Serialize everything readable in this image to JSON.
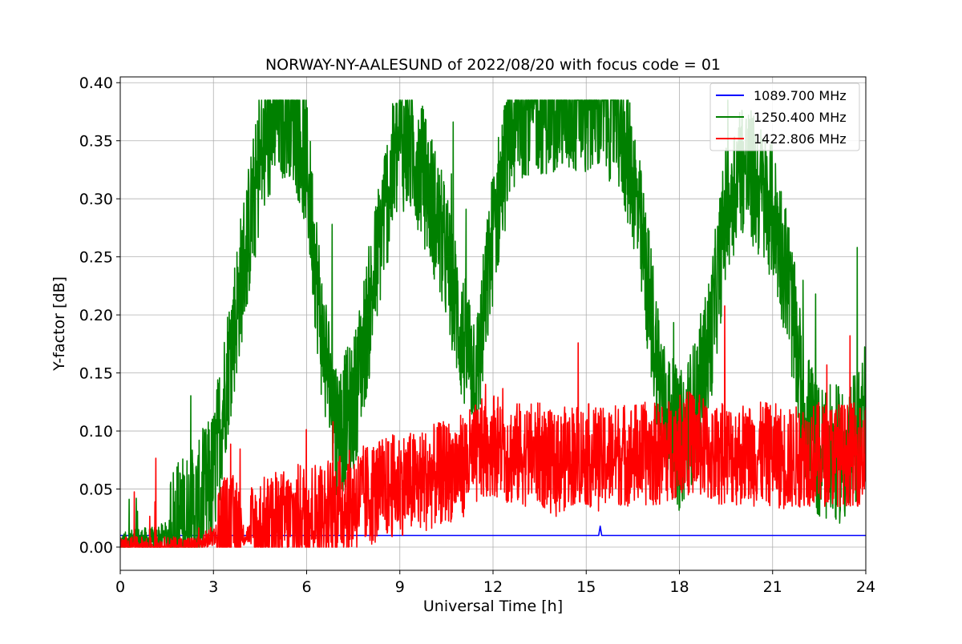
{
  "chart_data": {
    "type": "line",
    "title": "NORWAY-NY-AALESUND of 2022/08/20 with focus code = 01",
    "xlabel": "Universal Time [h]",
    "ylabel": "Y-factor [dB]",
    "xlim": [
      0,
      24
    ],
    "ylim": [
      -0.02,
      0.405
    ],
    "xticks": [
      0,
      3,
      6,
      9,
      12,
      15,
      18,
      21,
      24
    ],
    "xtick_labels": [
      "0",
      "3",
      "6",
      "9",
      "12",
      "15",
      "18",
      "21",
      "24"
    ],
    "yticks": [
      0.0,
      0.05,
      0.1,
      0.15,
      0.2,
      0.25,
      0.3,
      0.35,
      0.4
    ],
    "ytick_labels": [
      "0.00",
      "0.05",
      "0.10",
      "0.15",
      "0.20",
      "0.25",
      "0.30",
      "0.35",
      "0.40"
    ],
    "grid": true,
    "legend_position": "top-right",
    "series": [
      {
        "name": "1089.700 MHz",
        "color": "#0000ff",
        "x": [
          0,
          15.4,
          15.45,
          15.5,
          24
        ],
        "y": [
          0.01,
          0.01,
          0.018,
          0.01,
          0.01
        ]
      },
      {
        "name": "1250.400 MHz",
        "color": "#008000",
        "x": [
          0,
          0.5,
          1.0,
          1.5,
          2.0,
          2.5,
          3.0,
          3.5,
          4.0,
          4.5,
          5.0,
          5.5,
          6.0,
          6.5,
          7.0,
          7.5,
          8.0,
          8.5,
          9.0,
          9.5,
          10.0,
          10.5,
          11.0,
          11.5,
          12.0,
          12.5,
          13.0,
          13.5,
          14.0,
          14.5,
          15.0,
          15.5,
          16.0,
          16.5,
          17.0,
          17.5,
          18.0,
          18.5,
          19.0,
          19.5,
          20.0,
          20.5,
          21.0,
          21.5,
          22.0,
          22.5,
          23.0,
          23.5,
          24.0
        ],
        "y": [
          0.0,
          0.005,
          0.005,
          0.01,
          0.02,
          0.03,
          0.06,
          0.16,
          0.25,
          0.33,
          0.37,
          0.38,
          0.33,
          0.18,
          0.1,
          0.12,
          0.2,
          0.29,
          0.35,
          0.34,
          0.3,
          0.25,
          0.18,
          0.15,
          0.27,
          0.35,
          0.38,
          0.38,
          0.38,
          0.38,
          0.38,
          0.38,
          0.37,
          0.32,
          0.22,
          0.12,
          0.09,
          0.12,
          0.18,
          0.29,
          0.33,
          0.31,
          0.29,
          0.23,
          0.12,
          0.08,
          0.08,
          0.08,
          0.12
        ],
        "noise": 0.06
      },
      {
        "name": "1422.806 MHz",
        "color": "#ff0000",
        "x": [
          0,
          0.5,
          1.0,
          1.5,
          2.0,
          2.5,
          3.0,
          3.5,
          4.0,
          4.5,
          5.0,
          5.5,
          6.0,
          6.5,
          7.0,
          7.5,
          8.0,
          8.5,
          9.0,
          9.5,
          10.0,
          10.5,
          11.0,
          11.5,
          12.0,
          12.5,
          13.0,
          13.5,
          14.0,
          14.5,
          15.0,
          15.5,
          16.0,
          16.5,
          17.0,
          17.5,
          18.0,
          18.5,
          19.0,
          19.5,
          20.0,
          20.5,
          21.0,
          21.5,
          22.0,
          22.5,
          23.0,
          23.5,
          24.0
        ],
        "y": [
          0.0,
          0.0,
          0.0,
          0.0,
          0.0,
          0.0,
          0.01,
          0.02,
          0.01,
          0.015,
          0.02,
          0.025,
          0.03,
          0.03,
          0.035,
          0.04,
          0.045,
          0.05,
          0.055,
          0.055,
          0.06,
          0.065,
          0.07,
          0.08,
          0.09,
          0.08,
          0.08,
          0.08,
          0.07,
          0.08,
          0.08,
          0.075,
          0.08,
          0.08,
          0.08,
          0.08,
          0.09,
          0.09,
          0.08,
          0.08,
          0.08,
          0.08,
          0.08,
          0.075,
          0.08,
          0.08,
          0.08,
          0.08,
          0.08
        ],
        "noise": 0.045
      }
    ]
  }
}
